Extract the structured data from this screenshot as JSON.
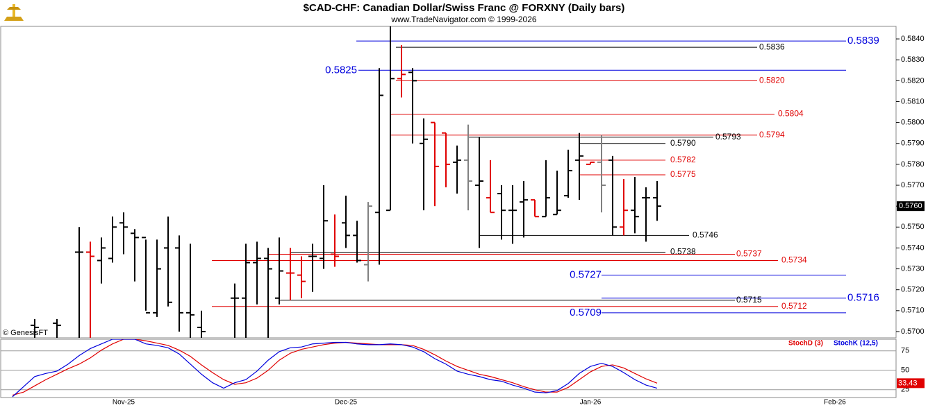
{
  "chart_data": {
    "type": "ohlc",
    "title": "$CAD-CHF:  Canadian Dollar/Swiss Franc @ FORXNY  (Daily bars)",
    "subtitle": "www.TradeNavigator.com © 1999-2026",
    "watermark": "© GenesisFT",
    "categories": [
      null,
      null,
      null,
      null,
      null,
      null,
      null,
      null,
      null,
      null,
      "Nov-25",
      null,
      null,
      null,
      null,
      null,
      null,
      null,
      null,
      null,
      null,
      null,
      null,
      null,
      null,
      null,
      null,
      null,
      null,
      null,
      "Dec-25",
      null,
      null,
      null,
      null,
      null,
      null,
      null,
      null,
      null,
      null,
      null,
      null,
      null,
      null,
      null,
      null,
      null,
      null,
      null,
      null,
      null,
      "Jan-26",
      null,
      null,
      null,
      null,
      null,
      null,
      null,
      null,
      null,
      null,
      null,
      null,
      null,
      null,
      null,
      null,
      null,
      null,
      null,
      null,
      null,
      "Feb-26",
      null,
      null,
      null,
      null
    ],
    "open": [
      null,
      null,
      0.5703,
      null,
      0.5704,
      null,
      0.5738,
      0.5738,
      0.5734,
      0.5735,
      0.5752,
      0.5747,
      0.5745,
      0.5709,
      0.574,
      0.574,
      0.5709,
      0.5702,
      null,
      null,
      0.5716,
      0.5716,
      0.5733,
      0.5735,
      0.5716,
      0.5728,
      0.5727,
      0.5736,
      0.5735,
      0.5737,
      0.5752,
      0.5746,
      0.5732,
      0.5757,
      0.5758,
      0.5821,
      0.5824,
      0.579,
      0.58,
      0.5795,
      0.5781,
      0.5782,
      0.577,
      0.5764,
      0.5766,
      0.5758,
      0.5762,
      0.5763,
      0.5755,
      0.5756,
      0.5765,
      0.5782,
      0.578,
      0.5781,
      0.5782,
      0.575,
      0.5758,
      0.5764,
      0.5764,
      null,
      null,
      null,
      null,
      null,
      null,
      null,
      null,
      null,
      null,
      null,
      null,
      null,
      null,
      null,
      null,
      null,
      null,
      null,
      null
    ],
    "high": [
      null,
      null,
      0.5706,
      null,
      0.5706,
      null,
      0.575,
      0.5743,
      0.5745,
      0.5755,
      0.5757,
      0.5749,
      0.5744,
      0.5744,
      0.5755,
      0.5746,
      0.5742,
      0.571,
      null,
      null,
      0.5723,
      0.5742,
      0.5743,
      0.574,
      0.5745,
      0.574,
      0.5736,
      0.5742,
      0.577,
      0.5756,
      0.5765,
      0.5753,
      0.5762,
      0.5826,
      0.5847,
      0.5837,
      0.5826,
      0.5802,
      0.58,
      0.5795,
      0.5789,
      0.5799,
      0.5793,
      0.5782,
      0.577,
      0.577,
      0.5772,
      0.5763,
      0.5782,
      0.5777,
      0.5787,
      0.5795,
      0.5781,
      0.5794,
      0.5784,
      0.5773,
      0.5774,
      0.5769,
      0.5772,
      null,
      null,
      null,
      null,
      null,
      null,
      null,
      null,
      null,
      null,
      null,
      null,
      null,
      null,
      null,
      null,
      null,
      null,
      null,
      null
    ],
    "low": [
      null,
      null,
      0.5695,
      null,
      0.5696,
      null,
      0.569,
      0.569,
      0.5723,
      0.5733,
      0.5737,
      0.5724,
      0.571,
      0.5707,
      0.5712,
      0.57,
      0.5695,
      0.5695,
      null,
      null,
      0.5695,
      0.5695,
      0.5713,
      0.5695,
      0.5713,
      0.5715,
      0.5716,
      0.5719,
      0.573,
      0.5731,
      0.574,
      0.5733,
      0.5724,
      0.5732,
      0.5758,
      0.5812,
      0.579,
      0.5758,
      0.576,
      0.5769,
      0.5766,
      0.5758,
      0.574,
      0.5757,
      0.5744,
      0.5742,
      0.5745,
      0.5755,
      0.5755,
      0.5756,
      0.5764,
      0.5763,
      0.578,
      0.5757,
      0.5746,
      0.5746,
      0.5747,
      0.5743,
      0.5753,
      null,
      null,
      null,
      null,
      null,
      null,
      null,
      null,
      null,
      null,
      null,
      null,
      null,
      null,
      null,
      null,
      null,
      null,
      null,
      null
    ],
    "close": [
      null,
      null,
      0.5702,
      null,
      0.5703,
      null,
      0.5738,
      0.5736,
      0.574,
      0.575,
      0.575,
      0.5745,
      0.5709,
      0.573,
      0.5714,
      0.5709,
      0.5708,
      0.57,
      null,
      null,
      0.5716,
      0.5733,
      0.5735,
      0.573,
      0.5729,
      0.5728,
      0.5724,
      0.5736,
      0.5753,
      0.5736,
      0.5746,
      0.5734,
      0.576,
      0.5813,
      0.5821,
      0.5823,
      0.582,
      0.5792,
      0.5779,
      0.578,
      0.5782,
      0.5772,
      0.5772,
      0.5757,
      0.5758,
      0.5758,
      0.5763,
      0.5755,
      0.5764,
      0.5758,
      0.5777,
      0.5784,
      0.5781,
      0.577,
      0.575,
      0.5758,
      0.5755,
      0.5764,
      0.576,
      null,
      null,
      null,
      null,
      null,
      null,
      null,
      null,
      null,
      null,
      null,
      null,
      null,
      null,
      null,
      null,
      null,
      null,
      null,
      null
    ],
    "bar_colors": [
      null,
      null,
      "#000000",
      null,
      "#000000",
      null,
      "#000000",
      "#e00000",
      "#000000",
      "#000000",
      "#000000",
      "#000000",
      "#000000",
      "#000000",
      "#000000",
      "#000000",
      "#000000",
      "#000000",
      null,
      null,
      "#000000",
      "#000000",
      "#000000",
      "#000000",
      "#000000",
      "#e00000",
      "#e00000",
      "#000000",
      "#000000",
      "#e00000",
      "#000000",
      "#000000",
      "#808080",
      "#000000",
      "#000000",
      "#e00000",
      "#000000",
      "#000000",
      "#e00000",
      "#e00000",
      "#000000",
      "#808080",
      "#000000",
      "#e00000",
      "#000000",
      "#000000",
      "#000000",
      "#e00000",
      "#000000",
      "#000000",
      "#000000",
      "#000000",
      "#e00000",
      "#808080",
      "#000000",
      "#e00000",
      "#000000",
      "#000000",
      "#000000",
      null,
      null,
      null,
      null,
      null,
      null,
      null,
      null,
      null,
      null,
      null,
      null,
      null,
      null,
      null,
      null,
      null,
      null,
      null,
      null
    ],
    "ylim": [
      0.5697,
      0.5846
    ],
    "yticks": [
      {
        "value": 0.57,
        "label": "0.5700"
      },
      {
        "value": 0.571,
        "label": "0.5710"
      },
      {
        "value": 0.572,
        "label": "0.5720"
      },
      {
        "value": 0.573,
        "label": "0.5730"
      },
      {
        "value": 0.574,
        "label": "0.5740"
      },
      {
        "value": 0.575,
        "label": "0.5750"
      },
      {
        "value": 0.576,
        "label": "0.5760"
      },
      {
        "value": 0.577,
        "label": "0.5770"
      },
      {
        "value": 0.578,
        "label": "0.5780"
      },
      {
        "value": 0.579,
        "label": "0.5790"
      },
      {
        "value": 0.58,
        "label": "0.5800"
      },
      {
        "value": 0.581,
        "label": "0.5810"
      },
      {
        "value": 0.582,
        "label": "0.5820"
      },
      {
        "value": 0.583,
        "label": "0.5830"
      },
      {
        "value": 0.584,
        "label": "0.5840"
      }
    ],
    "price_marker": {
      "value": 0.576,
      "label": "0.5760"
    },
    "levels": [
      {
        "value": 0.5839,
        "label": "0.5839",
        "color": "#0000dd"
      },
      {
        "value": 0.5836,
        "label": "0.5836",
        "color": "#000000"
      },
      {
        "value": 0.5825,
        "label": "0.5825",
        "color": "#0000dd"
      },
      {
        "value": 0.582,
        "label": "0.5820",
        "color": "#e00000"
      },
      {
        "value": 0.5804,
        "label": "0.5804",
        "color": "#e00000"
      },
      {
        "value": 0.5794,
        "label": "0.5794",
        "color": "#e00000"
      },
      {
        "value": 0.5793,
        "label": "0.5793",
        "color": "#000000"
      },
      {
        "value": 0.579,
        "label": "0.5790",
        "color": "#000000"
      },
      {
        "value": 0.5782,
        "label": "0.5782",
        "color": "#e00000"
      },
      {
        "value": 0.5775,
        "label": "0.5775",
        "color": "#e00000"
      },
      {
        "value": 0.5746,
        "label": "0.5746",
        "color": "#000000"
      },
      {
        "value": 0.5738,
        "label": "0.5738",
        "color": "#000000"
      },
      {
        "value": 0.5737,
        "label": "0.5737",
        "color": "#e00000"
      },
      {
        "value": 0.5734,
        "label": "0.5734",
        "color": "#e00000"
      },
      {
        "value": 0.5727,
        "label": "0.5727",
        "color": "#0000dd"
      },
      {
        "value": 0.5716,
        "label": "0.5716",
        "color": "#0000dd"
      },
      {
        "value": 0.5715,
        "label": "0.5715",
        "color": "#000000"
      },
      {
        "value": 0.5712,
        "label": "0.5712",
        "color": "#e00000"
      },
      {
        "value": 0.5709,
        "label": "0.5709",
        "color": "#0000dd"
      }
    ],
    "stoch": {
      "ylim": [
        15,
        90
      ],
      "yticks": [
        25,
        50,
        75
      ],
      "series": [
        {
          "name": "StochD (3)",
          "color": "#e00000",
          "values": [
            18,
            22,
            30,
            38,
            45,
            52,
            58,
            66,
            76,
            84,
            90,
            90,
            88,
            85,
            82,
            76,
            68,
            57,
            47,
            38,
            32,
            34,
            40,
            50,
            63,
            72,
            77,
            80,
            83,
            85,
            86,
            85,
            84,
            83,
            83,
            83,
            82,
            77,
            70,
            62,
            55,
            50,
            45,
            42,
            38,
            34,
            29,
            25,
            22,
            22,
            28,
            38,
            48,
            55,
            57,
            53,
            46,
            39,
            33.43,
            null,
            null,
            null,
            null,
            null,
            null,
            null,
            null,
            null,
            null,
            null,
            null,
            null,
            null,
            null,
            null,
            null,
            null,
            null,
            null
          ]
        },
        {
          "name": "StochK (12,5)",
          "color": "#0000dd",
          "values": [
            16,
            29,
            42,
            46,
            49,
            58,
            69,
            78,
            84,
            90,
            90,
            90,
            84,
            82,
            79,
            71,
            58,
            45,
            34,
            27,
            34,
            38,
            49,
            63,
            74,
            79,
            80,
            84,
            85,
            86,
            86,
            84,
            83,
            83,
            84,
            83,
            80,
            74,
            65,
            58,
            49,
            45,
            42,
            38,
            36,
            31,
            27,
            22,
            21,
            24,
            33,
            46,
            55,
            59,
            55,
            47,
            38,
            31,
            27,
            null,
            null,
            null,
            null,
            null,
            null,
            null,
            null,
            null,
            null,
            null,
            null,
            null,
            null,
            null,
            null,
            null,
            null,
            null,
            null
          ]
        }
      ]
    }
  }
}
